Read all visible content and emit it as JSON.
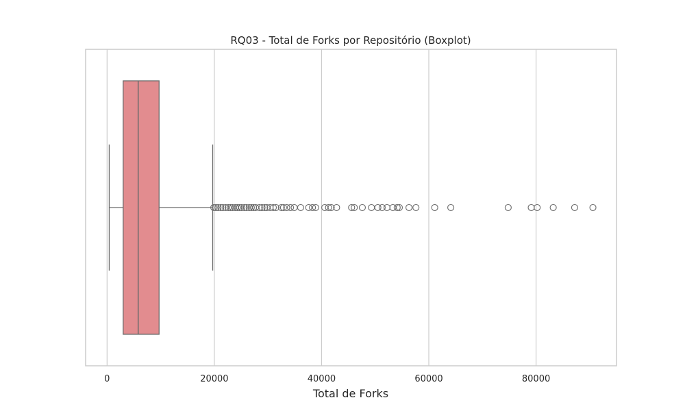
{
  "chart_data": {
    "type": "boxplot",
    "title": "RQ03 - Total de Forks por Repositório (Boxplot)",
    "xlabel": "Total de Forks",
    "ylabel": "",
    "orientation": "horizontal",
    "xlim": [
      -4000,
      95000
    ],
    "xticks": [
      0,
      20000,
      40000,
      60000,
      80000
    ],
    "xtick_labels": [
      "0",
      "20000",
      "40000",
      "60000",
      "80000"
    ],
    "grid": "vertical",
    "box": {
      "whisker_low": 400,
      "q1": 3000,
      "median": 5800,
      "q3": 9700,
      "whisker_high": 19700,
      "fill_color": "#e28c8f",
      "line_color": "#6b6b6b"
    },
    "outliers": [
      19900,
      20300,
      20700,
      21200,
      21600,
      22100,
      22600,
      23000,
      23400,
      23900,
      24300,
      24700,
      25100,
      25600,
      26000,
      26500,
      26900,
      27300,
      27700,
      28400,
      28900,
      29400,
      29800,
      30400,
      31000,
      31500,
      32500,
      32900,
      33500,
      34200,
      34900,
      36100,
      37600,
      38300,
      38900,
      40600,
      41300,
      41800,
      42800,
      45600,
      46100,
      47600,
      49300,
      50500,
      51300,
      52200,
      53300,
      54100,
      54500,
      56300,
      57600,
      61100,
      64100,
      74800,
      79100,
      80200,
      83200,
      87200,
      90600
    ]
  }
}
